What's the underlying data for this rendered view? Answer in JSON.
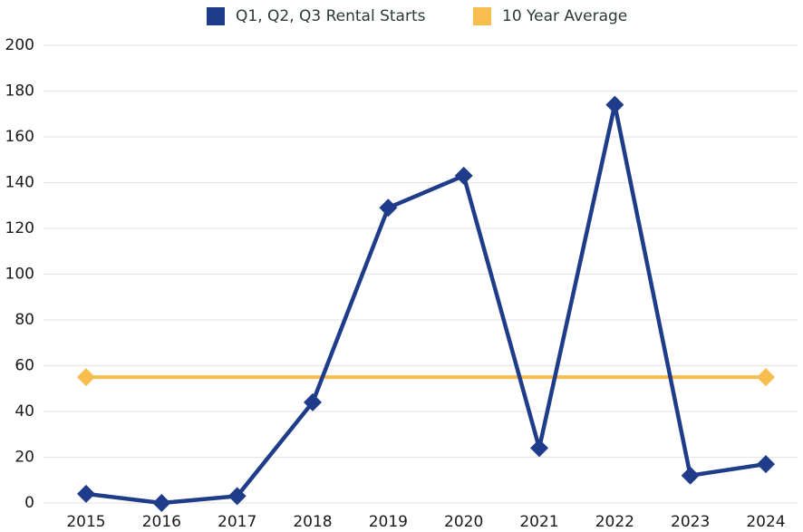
{
  "chart_data": {
    "type": "line",
    "categories": [
      "2015",
      "2016",
      "2017",
      "2018",
      "2019",
      "2020",
      "2021",
      "2022",
      "2023",
      "2024"
    ],
    "series": [
      {
        "name": "Q1, Q2, Q3 Rental Starts",
        "color": "#1f3c8a",
        "values": [
          4,
          0,
          3,
          44,
          129,
          143,
          24,
          174,
          12,
          17
        ]
      },
      {
        "name": "10 Year Average",
        "color": "#f7bd4f",
        "values": [
          55,
          55,
          55,
          55,
          55,
          55,
          55,
          55,
          55,
          55
        ]
      }
    ],
    "ylim": [
      0,
      200
    ],
    "yticks": [
      0,
      20,
      40,
      60,
      80,
      100,
      120,
      140,
      160,
      180,
      200
    ],
    "grid": true
  }
}
